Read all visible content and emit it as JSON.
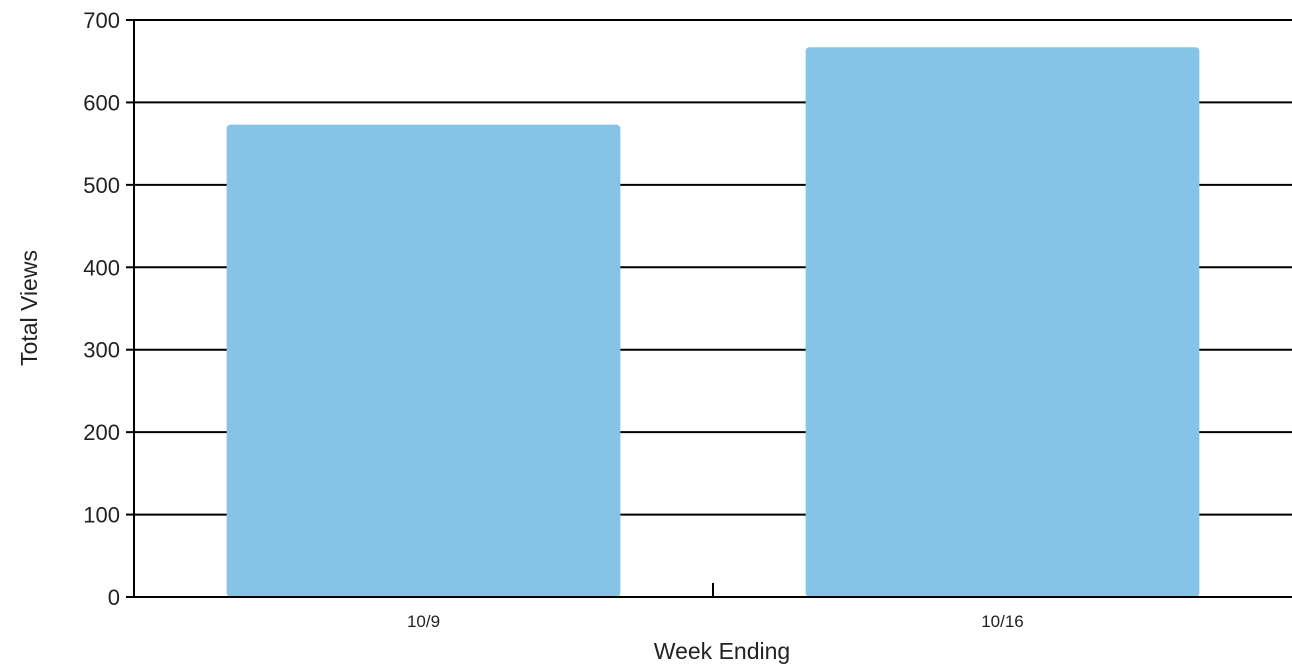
{
  "chart_data": {
    "type": "bar",
    "categories": [
      "10/9",
      "10/16"
    ],
    "values": [
      573,
      667
    ],
    "xlabel": "Week Ending",
    "ylabel": "Total Views",
    "ylim": [
      0,
      700
    ],
    "yticks": [
      0,
      100,
      200,
      300,
      400,
      500,
      600,
      700
    ],
    "grid": true,
    "bar_color": "#85C4E7",
    "grid_color": "#000000"
  }
}
